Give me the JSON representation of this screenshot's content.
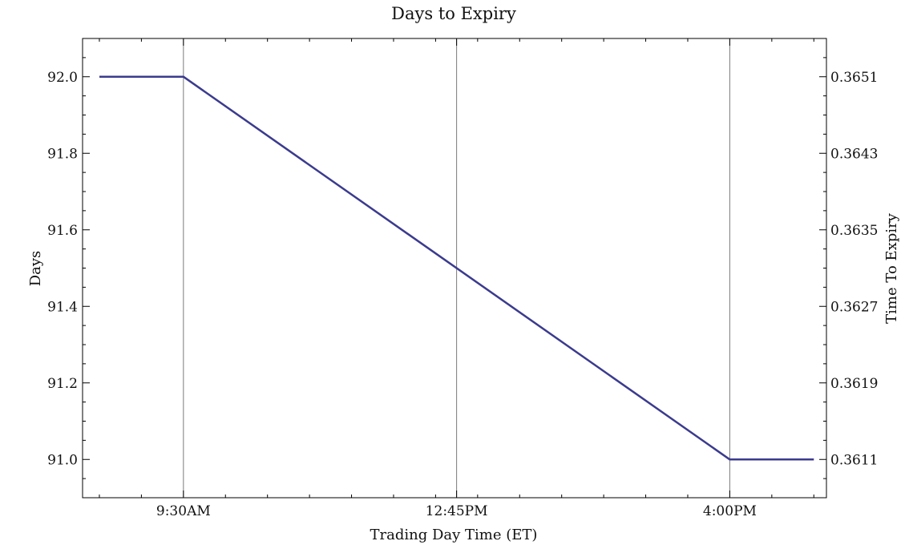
{
  "chart_data": {
    "type": "line",
    "title": "Days to Expiry",
    "xlabel": "Trading Day Time (ET)",
    "ylabel": "Days",
    "y2label": "Time To Expiry",
    "x_ticks": [
      "9:30AM",
      "12:45PM",
      "4:00PM"
    ],
    "y_ticks": [
      "91.0",
      "91.2",
      "91.4",
      "91.6",
      "91.8",
      "92.0"
    ],
    "y2_ticks": [
      "0.3611",
      "0.3619",
      "0.3627",
      "0.3635",
      "0.3643",
      "0.3651"
    ],
    "ylim": [
      90.9,
      92.1
    ],
    "x_hours": [
      8.5,
      9.5,
      16.0,
      17.0
    ],
    "xlim_hours": [
      8.3,
      17.15
    ],
    "values": [
      92.0,
      92.0,
      91.0,
      91.0
    ],
    "grid": "vertical lines at x ticks",
    "line_color": "#3b3b8f"
  }
}
